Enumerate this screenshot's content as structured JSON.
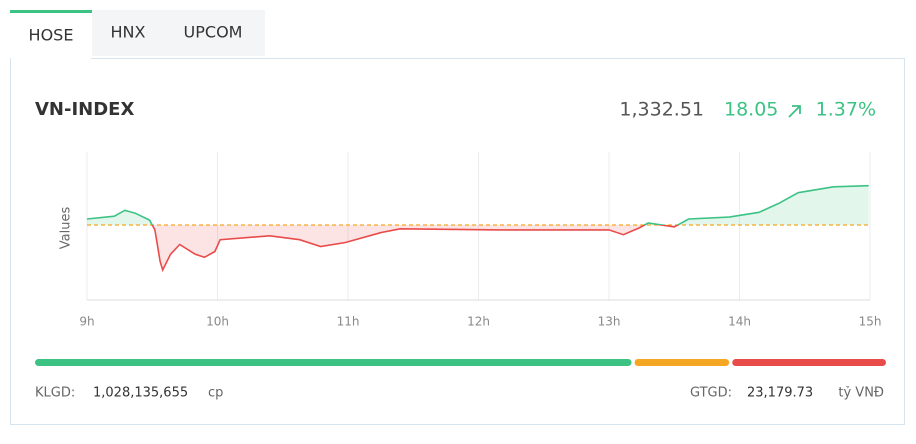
{
  "tabs": [
    "HOSE",
    "HNX",
    "UPCOM"
  ],
  "index": {
    "name": "VN-INDEX",
    "value": "1,332.51",
    "change": "18.05",
    "change_percent": "1.37%"
  },
  "chart_data": {
    "type": "line",
    "ylabel": "Values",
    "x": [
      9.0,
      9.21,
      9.29,
      9.37,
      9.48,
      9.52,
      9.56,
      9.58,
      9.64,
      9.71,
      9.83,
      9.9,
      9.98,
      10.02,
      10.4,
      10.63,
      10.79,
      10.98,
      11.25,
      11.4,
      12.17,
      13.0,
      13.11,
      13.23,
      13.3,
      13.5,
      13.61,
      13.92,
      14.15,
      14.3,
      14.45,
      14.72,
      14.99
    ],
    "values": [
      1317.2,
      1318.5,
      1321.2,
      1319.9,
      1316.7,
      1312.2,
      1297.8,
      1293.8,
      1301.0,
      1305.5,
      1301.0,
      1299.6,
      1302.3,
      1307.7,
      1309.5,
      1307.7,
      1304.6,
      1306.4,
      1310.9,
      1312.7,
      1312.2,
      1312.2,
      1310.0,
      1313.1,
      1315.4,
      1313.6,
      1317.2,
      1318.1,
      1320.3,
      1324.4,
      1329.3,
      1332.0,
      1332.5
    ],
    "reference": 1314.46,
    "up_color": "#3cc384",
    "down_color": "#e94b4b",
    "reference_color": "#f5a623",
    "xlim": [
      9,
      15
    ],
    "ylim": [
      1280,
      1348
    ],
    "xticks": [
      {
        "value": 9,
        "label": "9h"
      },
      {
        "value": 10,
        "label": "10h"
      },
      {
        "value": 11,
        "label": "11h"
      },
      {
        "value": 12,
        "label": "12h"
      },
      {
        "value": 13,
        "label": "13h"
      },
      {
        "value": 14,
        "label": "14h"
      },
      {
        "value": 15,
        "label": "15h"
      }
    ],
    "grid": true
  },
  "breadth": {
    "values": [
      70.6,
      11.2,
      18.2
    ],
    "colors": [
      "#3cc384",
      "#f5a623",
      "#e94b4b"
    ]
  },
  "footer": {
    "klgd_label": "KLGD:",
    "klgd_value": "1,028,135,655",
    "klgd_unit": "cp",
    "gtgd_label": "GTGD:",
    "gtgd_value": "23,179.73",
    "gtgd_unit": "tỷ VNĐ"
  }
}
